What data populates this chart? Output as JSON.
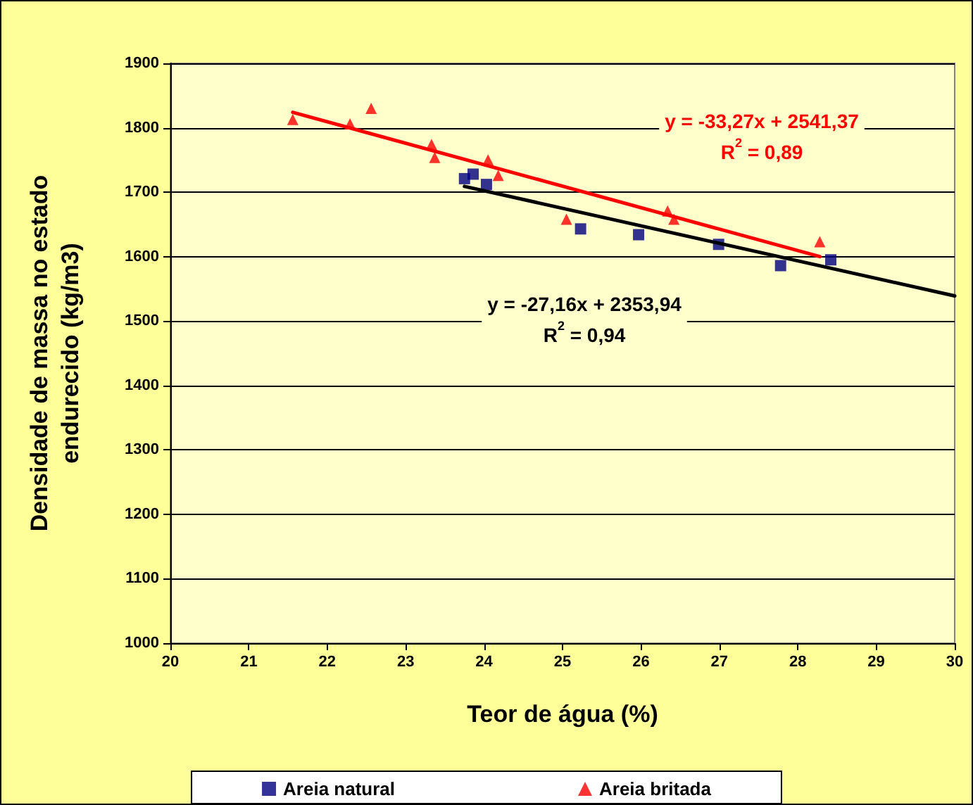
{
  "chart_data": {
    "type": "scatter",
    "xlabel": "Teor de água (%)",
    "ylabel": "Densidade de massa no estado\nendurecido (kg/m3)",
    "xlim": [
      20,
      30
    ],
    "xticks": [
      20,
      21,
      22,
      23,
      24,
      25,
      26,
      27,
      28,
      29,
      30
    ],
    "ylim": [
      1000,
      1900
    ],
    "yticks": [
      1000,
      1100,
      1200,
      1300,
      1400,
      1500,
      1600,
      1700,
      1800,
      1900
    ],
    "grid": "y",
    "legend": "bottom",
    "series": [
      {
        "name": "Areia natural",
        "color": "#000080",
        "marker": "square",
        "x": [
          23.75,
          23.86,
          24.03,
          25.23,
          25.97,
          26.99,
          27.78,
          28.42
        ],
        "values": [
          1721,
          1728,
          1712,
          1643,
          1634,
          1619,
          1586,
          1595
        ]
      },
      {
        "name": "Areia britada",
        "color": "#ff0000",
        "marker": "triangle",
        "x": [
          21.56,
          22.29,
          22.56,
          23.33,
          23.37,
          24.05,
          24.18,
          25.05,
          26.34,
          26.42,
          28.28
        ],
        "values": [
          1813,
          1806,
          1830,
          1774,
          1754,
          1750,
          1726,
          1658,
          1671,
          1658,
          1623
        ]
      },
      {
        "type": "line",
        "color": "#ff0000",
        "x": [
          21.56,
          28.28
        ],
        "values": [
          1824,
          1600
        ]
      },
      {
        "type": "line",
        "color": "#000000",
        "x": [
          23.75,
          30
        ],
        "values": [
          1709,
          1539
        ]
      }
    ],
    "annotations": [
      "y = -33,27x + 2541,37\nR$^{2}$ = 0,89",
      "y = -27,16x + 2353,94\nR$^{2}$ = 0,94"
    ]
  }
}
